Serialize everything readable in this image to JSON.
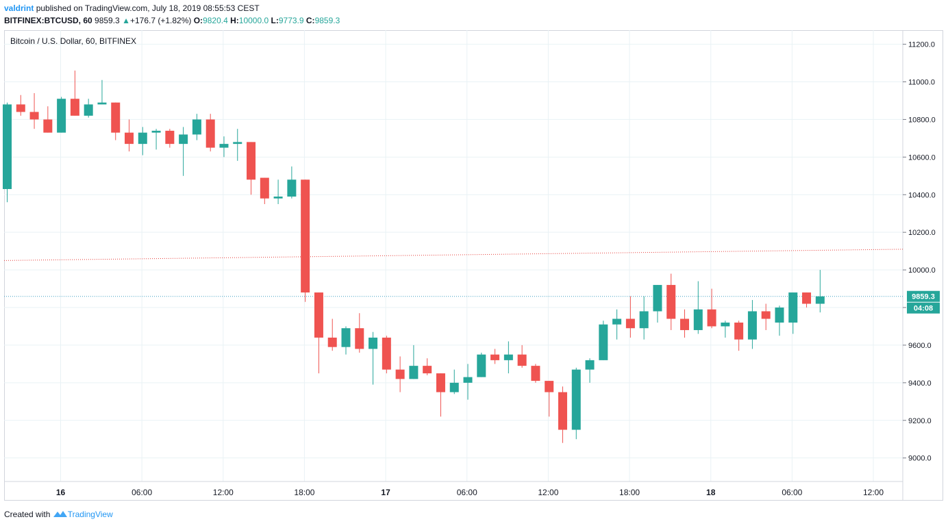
{
  "header": {
    "author": "valdrint",
    "published_text": "published on TradingView.com, July 18, 2019 08:55:53 CEST",
    "symbol": "BITFINEX:BTCUSD, 60",
    "last": "9859.3",
    "change_arrow": "▲",
    "change": "+176.7 (+1.82%)",
    "open_label": "O:",
    "open": "9820.4",
    "high_label": "H:",
    "high": "10000.0",
    "low_label": "L:",
    "low": "9773.9",
    "close_label": "C:",
    "close": "9859.3"
  },
  "footer": {
    "created_with": "Created with",
    "brand": "TradingView"
  },
  "colors": {
    "up": "#26a69a",
    "down": "#ef5350",
    "grid": "#e9f2f5",
    "trend": "#e53935",
    "price_line": "#3f9fc2",
    "price_tag": "#26a69a"
  },
  "chart_data": {
    "type": "candlestick",
    "title": "Bitcoin / U.S. Dollar, 60, BITFINEX",
    "x_ticks": [
      "16",
      "06:00",
      "12:00",
      "18:00",
      "17",
      "06:00",
      "12:00",
      "18:00",
      "18",
      "06:00",
      "12:00"
    ],
    "y_ticks": [
      "11200.0",
      "11000.0",
      "10800.0",
      "10600.0",
      "10400.0",
      "10200.0",
      "10000.0",
      "9800.0",
      "9600.0",
      "9400.0",
      "9200.0",
      "9000.0"
    ],
    "ylim": [
      8875,
      11275
    ],
    "grid": true,
    "current_price": "9859.3",
    "countdown": "04:08",
    "trendline": {
      "from": 10050,
      "to": 10110
    },
    "candles": [
      {
        "o": 10430,
        "h": 10890,
        "l": 10360,
        "c": 10880
      },
      {
        "o": 10880,
        "h": 10930,
        "l": 10820,
        "c": 10840
      },
      {
        "o": 10840,
        "h": 10940,
        "l": 10750,
        "c": 10800
      },
      {
        "o": 10800,
        "h": 10870,
        "l": 10730,
        "c": 10730
      },
      {
        "o": 10730,
        "h": 10920,
        "l": 10730,
        "c": 10910
      },
      {
        "o": 10910,
        "h": 11060,
        "l": 10820,
        "c": 10820
      },
      {
        "o": 10820,
        "h": 10910,
        "l": 10810,
        "c": 10880
      },
      {
        "o": 10880,
        "h": 11010,
        "l": 10880,
        "c": 10890
      },
      {
        "o": 10890,
        "h": 10890,
        "l": 10690,
        "c": 10730
      },
      {
        "o": 10730,
        "h": 10800,
        "l": 10630,
        "c": 10670
      },
      {
        "o": 10670,
        "h": 10760,
        "l": 10610,
        "c": 10730
      },
      {
        "o": 10730,
        "h": 10750,
        "l": 10640,
        "c": 10740
      },
      {
        "o": 10740,
        "h": 10750,
        "l": 10650,
        "c": 10670
      },
      {
        "o": 10670,
        "h": 10760,
        "l": 10500,
        "c": 10720
      },
      {
        "o": 10720,
        "h": 10830,
        "l": 10690,
        "c": 10800
      },
      {
        "o": 10800,
        "h": 10830,
        "l": 10630,
        "c": 10650
      },
      {
        "o": 10650,
        "h": 10710,
        "l": 10600,
        "c": 10670
      },
      {
        "o": 10670,
        "h": 10750,
        "l": 10580,
        "c": 10680
      },
      {
        "o": 10680,
        "h": 10680,
        "l": 10400,
        "c": 10480
      },
      {
        "o": 10490,
        "h": 10490,
        "l": 10350,
        "c": 10380
      },
      {
        "o": 10380,
        "h": 10480,
        "l": 10350,
        "c": 10390
      },
      {
        "o": 10390,
        "h": 10550,
        "l": 10380,
        "c": 10480
      },
      {
        "o": 10480,
        "h": 10480,
        "l": 9830,
        "c": 9880
      },
      {
        "o": 9880,
        "h": 9880,
        "l": 9450,
        "c": 9640
      },
      {
        "o": 9640,
        "h": 9740,
        "l": 9570,
        "c": 9590
      },
      {
        "o": 9590,
        "h": 9700,
        "l": 9550,
        "c": 9690
      },
      {
        "o": 9690,
        "h": 9770,
        "l": 9560,
        "c": 9580
      },
      {
        "o": 9580,
        "h": 9670,
        "l": 9390,
        "c": 9640
      },
      {
        "o": 9640,
        "h": 9650,
        "l": 9450,
        "c": 9470
      },
      {
        "o": 9470,
        "h": 9540,
        "l": 9350,
        "c": 9420
      },
      {
        "o": 9420,
        "h": 9600,
        "l": 9420,
        "c": 9490
      },
      {
        "o": 9490,
        "h": 9530,
        "l": 9440,
        "c": 9450
      },
      {
        "o": 9450,
        "h": 9450,
        "l": 9220,
        "c": 9350
      },
      {
        "o": 9350,
        "h": 9470,
        "l": 9340,
        "c": 9400
      },
      {
        "o": 9400,
        "h": 9500,
        "l": 9310,
        "c": 9430
      },
      {
        "o": 9430,
        "h": 9560,
        "l": 9430,
        "c": 9550
      },
      {
        "o": 9550,
        "h": 9580,
        "l": 9500,
        "c": 9520
      },
      {
        "o": 9520,
        "h": 9620,
        "l": 9450,
        "c": 9550
      },
      {
        "o": 9550,
        "h": 9600,
        "l": 9480,
        "c": 9490
      },
      {
        "o": 9490,
        "h": 9500,
        "l": 9400,
        "c": 9410
      },
      {
        "o": 9410,
        "h": 9410,
        "l": 9220,
        "c": 9350
      },
      {
        "o": 9350,
        "h": 9380,
        "l": 9080,
        "c": 9150
      },
      {
        "o": 9150,
        "h": 9480,
        "l": 9100,
        "c": 9470
      },
      {
        "o": 9470,
        "h": 9530,
        "l": 9400,
        "c": 9520
      },
      {
        "o": 9520,
        "h": 9730,
        "l": 9520,
        "c": 9710
      },
      {
        "o": 9710,
        "h": 9790,
        "l": 9630,
        "c": 9740
      },
      {
        "o": 9740,
        "h": 9860,
        "l": 9640,
        "c": 9690
      },
      {
        "o": 9690,
        "h": 9860,
        "l": 9630,
        "c": 9780
      },
      {
        "o": 9780,
        "h": 9920,
        "l": 9720,
        "c": 9920
      },
      {
        "o": 9920,
        "h": 9980,
        "l": 9680,
        "c": 9740
      },
      {
        "o": 9740,
        "h": 9790,
        "l": 9640,
        "c": 9680
      },
      {
        "o": 9680,
        "h": 9940,
        "l": 9660,
        "c": 9790
      },
      {
        "o": 9790,
        "h": 9900,
        "l": 9690,
        "c": 9700
      },
      {
        "o": 9700,
        "h": 9730,
        "l": 9640,
        "c": 9720
      },
      {
        "o": 9720,
        "h": 9730,
        "l": 9570,
        "c": 9630
      },
      {
        "o": 9630,
        "h": 9840,
        "l": 9580,
        "c": 9780
      },
      {
        "o": 9780,
        "h": 9820,
        "l": 9680,
        "c": 9740
      },
      {
        "o": 9720,
        "h": 9810,
        "l": 9650,
        "c": 9800
      },
      {
        "o": 9720,
        "h": 9880,
        "l": 9660,
        "c": 9880
      },
      {
        "o": 9880,
        "h": 9880,
        "l": 9800,
        "c": 9820
      },
      {
        "o": 9820,
        "h": 10000,
        "l": 9774,
        "c": 9859.3
      }
    ]
  }
}
